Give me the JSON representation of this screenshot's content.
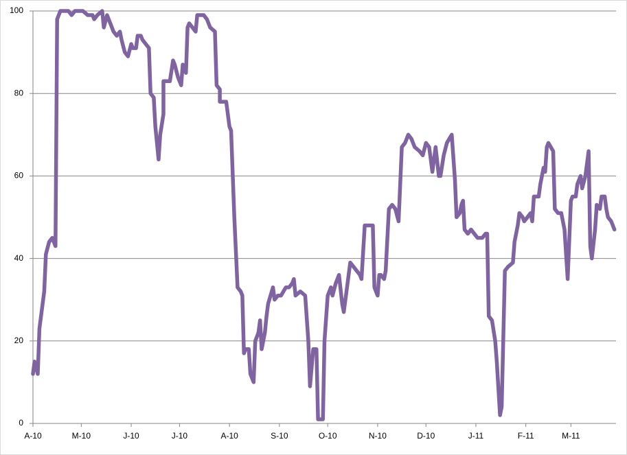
{
  "chart_data": {
    "type": "line",
    "x": [
      0,
      1,
      3,
      4,
      7,
      8,
      10,
      12,
      14,
      15,
      17,
      22,
      24,
      26,
      29,
      31,
      34,
      37,
      38,
      40,
      43,
      44,
      46,
      48,
      50,
      52,
      54,
      55,
      57,
      59,
      61,
      62,
      64,
      65,
      67,
      68,
      70,
      72,
      73,
      75,
      76,
      78,
      79,
      81,
      81,
      84,
      85,
      87,
      88,
      90,
      92,
      93,
      95,
      96,
      97,
      99,
      101,
      102,
      104,
      106,
      108,
      110,
      113,
      114,
      116,
      116,
      118,
      120,
      122,
      123,
      125,
      127,
      129,
      130,
      131,
      132,
      134,
      135,
      137,
      138,
      140,
      141,
      142,
      144,
      145,
      146,
      149,
      150,
      152,
      154,
      157,
      159,
      161,
      162,
      163,
      166,
      169,
      171,
      172,
      174,
      176,
      177,
      180,
      181,
      183,
      185,
      186,
      188,
      190,
      192,
      193,
      195,
      197,
      199,
      201,
      203,
      204,
      206,
      207,
      211,
      212,
      214,
      215,
      216,
      218,
      219,
      221,
      223,
      225,
      227,
      229,
      231,
      233,
      235,
      237,
      240,
      242,
      244,
      246,
      248,
      250,
      252,
      253,
      255,
      257,
      260,
      262,
      263,
      265,
      266,
      267,
      268,
      270,
      272,
      274,
      276,
      278,
      279,
      281,
      282,
      283,
      285,
      287,
      288,
      290,
      291,
      293,
      295,
      298,
      299,
      301,
      302,
      304,
      305,
      307,
      309,
      310,
      311,
      314,
      315,
      317,
      318,
      319,
      320,
      323,
      324,
      326,
      328,
      330,
      332,
      334,
      335,
      337,
      338,
      340,
      341,
      343,
      345,
      346,
      347,
      349,
      350,
      352,
      353,
      355,
      356,
      357,
      359,
      361
    ],
    "series": [
      {
        "color": "#8064a2",
        "values": [
          12,
          15,
          12,
          23,
          32,
          41,
          44,
          45,
          43,
          98,
          100,
          100,
          99,
          100,
          100,
          100,
          99,
          99,
          98,
          99,
          100,
          96,
          99,
          97,
          95,
          94,
          95,
          93,
          90,
          89,
          92,
          91,
          91,
          94,
          94,
          93,
          92,
          91,
          80,
          79,
          72,
          64,
          70,
          75,
          83,
          83,
          83,
          88,
          87,
          84,
          82,
          87,
          85,
          96,
          97,
          96,
          95,
          99,
          99,
          99,
          98,
          96,
          95,
          82,
          81,
          78,
          78,
          78,
          72,
          71,
          50,
          33,
          32,
          31,
          17,
          18,
          18,
          12,
          10,
          20,
          22,
          25,
          18,
          22,
          26,
          29,
          33,
          30,
          31,
          31,
          33,
          33,
          34,
          35,
          31,
          32,
          31,
          20,
          9,
          18,
          18,
          1,
          1,
          20,
          31,
          33,
          31,
          34,
          36,
          29,
          27,
          33,
          39,
          38,
          37,
          36,
          35,
          48,
          48,
          48,
          33,
          31,
          36,
          36,
          35,
          37,
          52,
          53,
          52,
          49,
          67,
          68,
          70,
          69,
          67,
          66,
          65,
          68,
          67,
          61,
          67,
          60,
          60,
          65,
          68,
          70,
          59,
          50,
          51,
          53,
          54,
          47,
          46,
          47,
          46,
          45,
          45,
          45,
          46,
          46,
          26,
          25,
          20,
          15,
          2,
          4,
          37,
          38,
          39,
          44,
          48,
          51,
          50,
          49,
          50,
          51,
          49,
          55,
          55,
          58,
          62,
          61,
          67,
          68,
          66,
          52,
          51,
          51,
          47,
          35,
          54,
          55,
          55,
          58,
          60,
          57,
          60,
          66,
          43,
          40,
          47,
          53,
          52,
          55,
          55,
          52,
          50,
          49,
          47
        ]
      }
    ],
    "xlim": [
      0,
      362
    ],
    "xticks": [
      {
        "value": 0,
        "label": "A-10"
      },
      {
        "value": 30,
        "label": "M-10"
      },
      {
        "value": 61,
        "label": "J-10"
      },
      {
        "value": 91,
        "label": "J-10"
      },
      {
        "value": 122,
        "label": "A-10"
      },
      {
        "value": 153,
        "label": "S-10"
      },
      {
        "value": 183,
        "label": "O-10"
      },
      {
        "value": 214,
        "label": "N-10"
      },
      {
        "value": 244,
        "label": "D-10"
      },
      {
        "value": 275,
        "label": "J-11"
      },
      {
        "value": 306,
        "label": "F-11"
      },
      {
        "value": 334,
        "label": "M-11"
      }
    ],
    "ylim": [
      0,
      100
    ],
    "yticks": [
      0,
      20,
      40,
      60,
      80,
      100
    ],
    "grid": true
  }
}
